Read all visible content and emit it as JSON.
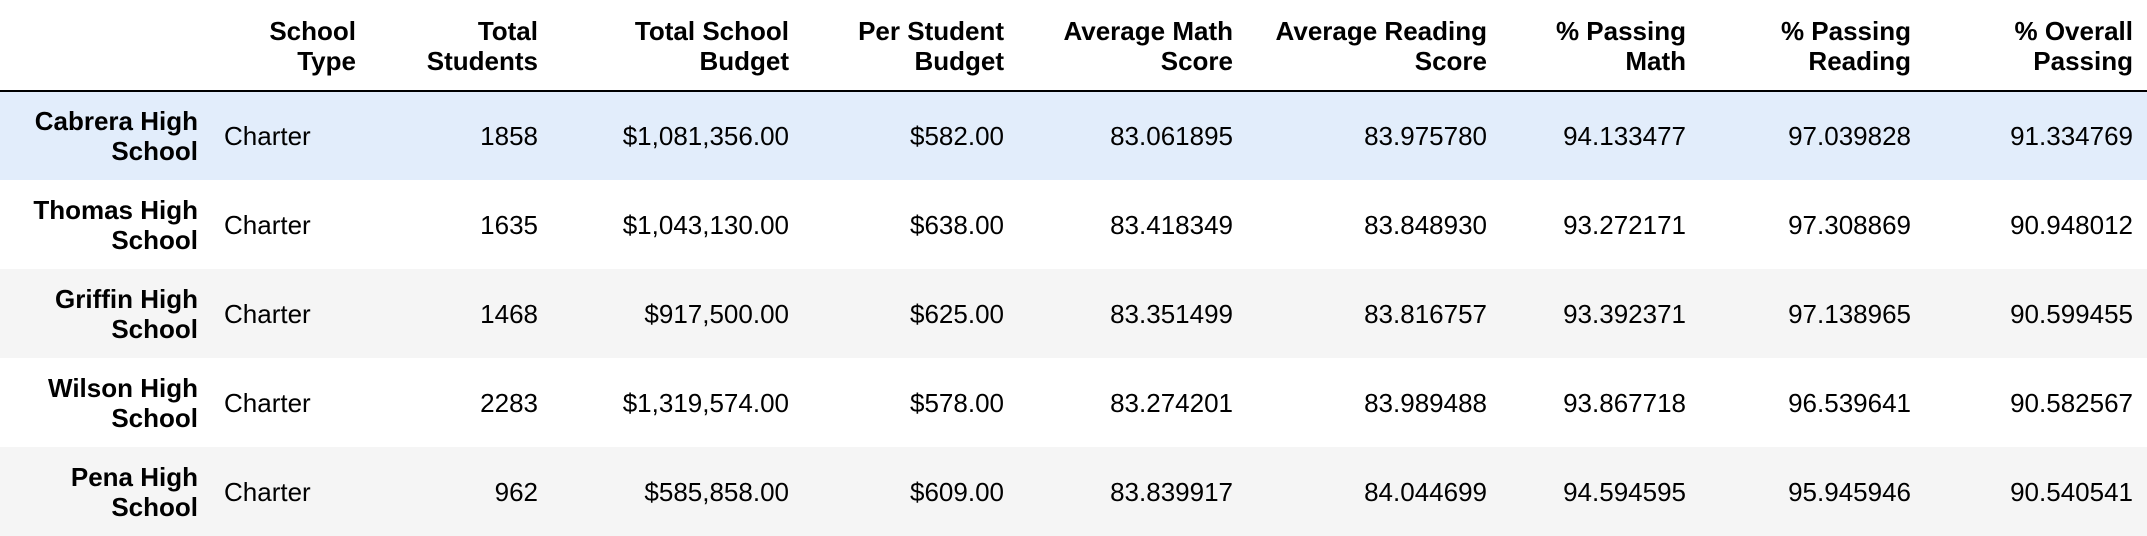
{
  "table": {
    "columns": [
      "",
      "School Type",
      "Total Students",
      "Total School Budget",
      "Per Student Budget",
      "Average Math Score",
      "Average Reading Score",
      "% Passing Math",
      "% Passing Reading",
      "% Overall Passing"
    ],
    "header_lines": [
      [
        "",
        ""
      ],
      [
        "School",
        "Type"
      ],
      [
        "Total",
        "Students"
      ],
      [
        "Total School",
        "Budget"
      ],
      [
        "Per Student",
        "Budget"
      ],
      [
        "Average Math",
        "Score"
      ],
      [
        "Average Reading",
        "Score"
      ],
      [
        "% Passing",
        "Math"
      ],
      [
        "% Passing",
        "Reading"
      ],
      [
        "% Overall",
        "Passing"
      ]
    ],
    "rows": [
      {
        "name_lines": [
          "Cabrera High",
          "School"
        ],
        "cells": [
          "Charter",
          "1858",
          "$1,081,356.00",
          "$582.00",
          "83.061895",
          "83.975780",
          "94.133477",
          "97.039828",
          "91.334769"
        ]
      },
      {
        "name_lines": [
          "Thomas High",
          "School"
        ],
        "cells": [
          "Charter",
          "1635",
          "$1,043,130.00",
          "$638.00",
          "83.418349",
          "83.848930",
          "93.272171",
          "97.308869",
          "90.948012"
        ]
      },
      {
        "name_lines": [
          "Griffin High",
          "School"
        ],
        "cells": [
          "Charter",
          "1468",
          "$917,500.00",
          "$625.00",
          "83.351499",
          "83.816757",
          "93.392371",
          "97.138965",
          "90.599455"
        ]
      },
      {
        "name_lines": [
          "Wilson High",
          "School"
        ],
        "cells": [
          "Charter",
          "2283",
          "$1,319,574.00",
          "$578.00",
          "83.274201",
          "83.989488",
          "93.867718",
          "96.539641",
          "90.582567"
        ]
      },
      {
        "name_lines": [
          "Pena High",
          "School"
        ],
        "cells": [
          "Charter",
          "962",
          "$585,858.00",
          "$609.00",
          "83.839917",
          "84.044699",
          "94.594595",
          "95.945946",
          "90.540541"
        ]
      }
    ]
  },
  "colors": {
    "row_highlight": "#e2edfb",
    "row_stripe": "#f5f5f5",
    "row_plain": "#ffffff",
    "header_rule": "#000000"
  }
}
